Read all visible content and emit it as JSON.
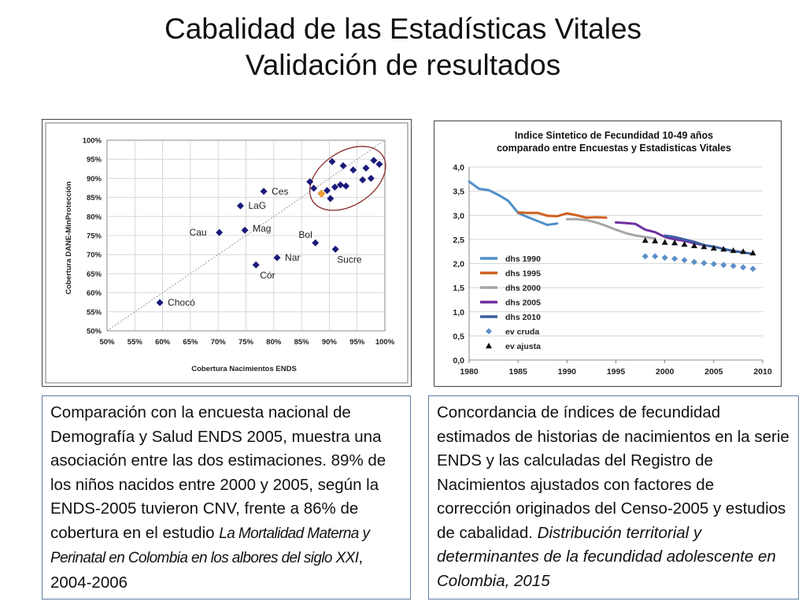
{
  "slide": {
    "title_line1": "Cabalidad de las Estadísticas Vitales",
    "title_line2": "Validación de resultados"
  },
  "left_box": {
    "text_main": "Comparación con la encuesta nacional de Demografía y Salud ENDS 2005, muestra una asociación entre las dos estimaciones. 89% de los niños nacidos entre 2000 y 2005, según la ENDS-2005 tuvieron CNV, frente a 86% de cobertura en el estudio",
    "text_title_italic": "La Mortalidad Materna y Perinatal en Colombia en los albores del siglo XXI",
    "text_end": ", 2004-2006"
  },
  "right_box": {
    "text_main": "Concordancia de índices de fecundidad estimados de historias de nacimientos en la serie ENDS y las calculadas del Registro de Nacimientos ajustados con factores de corrección originados del Censo-2005 y estudios de cabalidad.",
    "text_italic": "Distribución territorial y determinantes de la fecundidad adolescente en Colombia, 2015"
  },
  "chart_data": [
    {
      "type": "scatter",
      "xlabel": "Cobertura Nacimientos ENDS",
      "ylabel": "Cobertura DANE-MinProtección",
      "xlim": [
        0.5,
        1.0
      ],
      "ylim": [
        0.5,
        1.0
      ],
      "x_ticks": [
        "50%",
        "55%",
        "60%",
        "65%",
        "70%",
        "75%",
        "80%",
        "85%",
        "90%",
        "95%",
        "100%"
      ],
      "y_ticks": [
        "100%",
        "95%",
        "90%",
        "85%",
        "80%",
        "75%",
        "70%",
        "65%",
        "60%",
        "55%",
        "50%"
      ],
      "colors": {
        "points": "#1a1a7a",
        "highlight": "#f0a030",
        "ellipse": "#8b2b2b",
        "diagonal": "#999999"
      },
      "labeled_points": [
        {
          "label": "Chocó",
          "x": 0.595,
          "y": 0.574
        },
        {
          "label": "Cau",
          "x": 0.702,
          "y": 0.758
        },
        {
          "label": "LaG",
          "x": 0.74,
          "y": 0.828
        },
        {
          "label": "Ces",
          "x": 0.782,
          "y": 0.866
        },
        {
          "label": "Mag",
          "x": 0.748,
          "y": 0.764
        },
        {
          "label": "Bol",
          "x": 0.875,
          "y": 0.731
        },
        {
          "label": "Sucre",
          "x": 0.911,
          "y": 0.714
        },
        {
          "label": "Nar",
          "x": 0.806,
          "y": 0.692
        },
        {
          "label": "Cór",
          "x": 0.768,
          "y": 0.673
        }
      ],
      "other_points": [
        {
          "x": 0.905,
          "y": 0.944
        },
        {
          "x": 0.925,
          "y": 0.933
        },
        {
          "x": 0.943,
          "y": 0.922
        },
        {
          "x": 0.966,
          "y": 0.927
        },
        {
          "x": 0.98,
          "y": 0.947
        },
        {
          "x": 0.99,
          "y": 0.937
        },
        {
          "x": 0.865,
          "y": 0.891
        },
        {
          "x": 0.872,
          "y": 0.874
        },
        {
          "x": 0.885,
          "y": 0.86
        },
        {
          "x": 0.896,
          "y": 0.868
        },
        {
          "x": 0.91,
          "y": 0.877
        },
        {
          "x": 0.92,
          "y": 0.883
        },
        {
          "x": 0.93,
          "y": 0.88
        },
        {
          "x": 0.96,
          "y": 0.896
        },
        {
          "x": 0.975,
          "y": 0.9
        },
        {
          "x": 0.902,
          "y": 0.847
        }
      ],
      "highlight_point": {
        "x": 0.886,
        "y": 0.86
      }
    },
    {
      "type": "line",
      "title": "Indice Sintetico de Fecundidad 10-49 años",
      "subtitle": "comparado entre Encuestas y Estadisticas Vitales",
      "xlim": [
        1980,
        2010
      ],
      "ylim": [
        0,
        4
      ],
      "x_ticks": [
        "1980",
        "1985",
        "1990",
        "1995",
        "2000",
        "2005",
        "2010"
      ],
      "y_ticks": [
        "4,0",
        "3,5",
        "3,0",
        "2,5",
        "2,0",
        "1,5",
        "1,0",
        "0,5",
        "0,0"
      ],
      "grid": true,
      "legend_position": "left",
      "series": [
        {
          "name": "dhs 1990",
          "color": "#4f8fc8",
          "marker": "line",
          "points": [
            [
              1980,
              3.7
            ],
            [
              1981,
              3.55
            ],
            [
              1982,
              3.52
            ],
            [
              1983,
              3.42
            ],
            [
              1984,
              3.3
            ],
            [
              1985,
              3.05
            ],
            [
              1986,
              2.96
            ],
            [
              1987,
              2.88
            ],
            [
              1988,
              2.8
            ],
            [
              1989,
              2.83
            ]
          ]
        },
        {
          "name": "dhs 1995",
          "color": "#d06020",
          "marker": "line",
          "points": [
            [
              1985,
              3.06
            ],
            [
              1986,
              3.05
            ],
            [
              1987,
              3.05
            ],
            [
              1988,
              2.99
            ],
            [
              1989,
              2.98
            ],
            [
              1990,
              3.04
            ],
            [
              1991,
              3.0
            ],
            [
              1992,
              2.95
            ],
            [
              1993,
              2.96
            ],
            [
              1994,
              2.95
            ]
          ]
        },
        {
          "name": "dhs 2000",
          "color": "#a6a6a6",
          "marker": "line",
          "points": [
            [
              1990,
              2.92
            ],
            [
              1991,
              2.92
            ],
            [
              1992,
              2.9
            ],
            [
              1993,
              2.85
            ],
            [
              1994,
              2.78
            ],
            [
              1995,
              2.7
            ],
            [
              1996,
              2.63
            ],
            [
              1997,
              2.58
            ],
            [
              1998,
              2.55
            ],
            [
              1999,
              2.52
            ]
          ]
        },
        {
          "name": "dhs 2005",
          "color": "#7030a0",
          "marker": "line",
          "points": [
            [
              1995,
              2.85
            ],
            [
              1996,
              2.84
            ],
            [
              1997,
              2.82
            ],
            [
              1998,
              2.7
            ],
            [
              1999,
              2.65
            ],
            [
              2000,
              2.55
            ],
            [
              2001,
              2.5
            ],
            [
              2002,
              2.47
            ],
            [
              2003,
              2.42
            ],
            [
              2004,
              2.38
            ]
          ]
        },
        {
          "name": "dhs 2010",
          "color": "#3b5fa0",
          "marker": "line",
          "points": [
            [
              2000,
              2.58
            ],
            [
              2001,
              2.55
            ],
            [
              2002,
              2.5
            ],
            [
              2003,
              2.45
            ],
            [
              2004,
              2.38
            ],
            [
              2005,
              2.35
            ],
            [
              2006,
              2.3
            ],
            [
              2007,
              2.26
            ],
            [
              2008,
              2.23
            ],
            [
              2009,
              2.2
            ]
          ]
        },
        {
          "name": "ev cruda",
          "color": "#5a8fc8",
          "marker": "diamond",
          "points": [
            [
              1998,
              2.15
            ],
            [
              1999,
              2.15
            ],
            [
              2000,
              2.12
            ],
            [
              2001,
              2.1
            ],
            [
              2002,
              2.07
            ],
            [
              2003,
              2.03
            ],
            [
              2004,
              2.01
            ],
            [
              2005,
              1.99
            ],
            [
              2006,
              1.97
            ],
            [
              2007,
              1.95
            ],
            [
              2008,
              1.92
            ],
            [
              2009,
              1.89
            ]
          ]
        },
        {
          "name": "ev ajusta",
          "color": "#111111",
          "marker": "triangle",
          "points": [
            [
              1998,
              2.48
            ],
            [
              1999,
              2.47
            ],
            [
              2000,
              2.44
            ],
            [
              2001,
              2.43
            ],
            [
              2002,
              2.4
            ],
            [
              2003,
              2.37
            ],
            [
              2004,
              2.35
            ],
            [
              2005,
              2.32
            ],
            [
              2006,
              2.3
            ],
            [
              2007,
              2.27
            ],
            [
              2008,
              2.25
            ],
            [
              2009,
              2.22
            ]
          ]
        }
      ]
    }
  ]
}
